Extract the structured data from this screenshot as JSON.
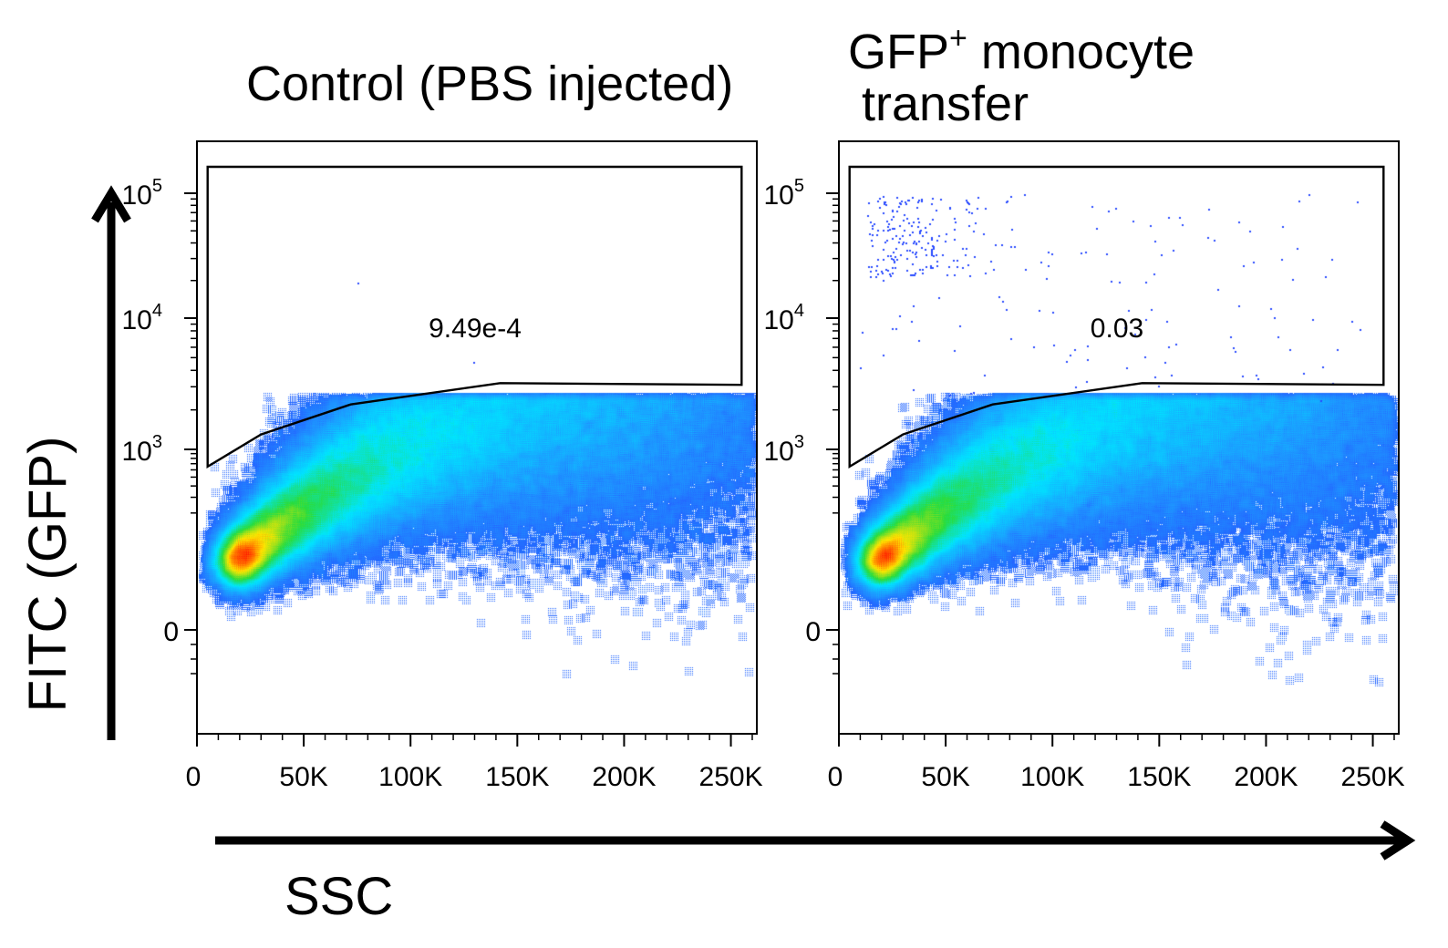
{
  "figure": {
    "ylabel": "FITC (GFP)",
    "xlabel": "SSC"
  },
  "chart_data": [
    {
      "type": "scatter",
      "title": "Control (PBS injected)",
      "xlabel": "SSC",
      "ylabel": "FITC (GFP)",
      "x_scale": "linear",
      "y_scale": "biexponential",
      "xlim": [
        0,
        262144
      ],
      "x_ticks": [
        "0",
        "50K",
        "100K",
        "150K",
        "200K",
        "250K"
      ],
      "x_tick_values": [
        0,
        50000,
        100000,
        150000,
        200000,
        250000
      ],
      "y_ticks": [
        "0",
        "10^3",
        "10^4",
        "10^5"
      ],
      "y_tick_values": [
        0,
        1000,
        10000,
        100000
      ],
      "gate": {
        "label": "9.49e-4",
        "polygon": [
          [
            5000,
            650
          ],
          [
            30000,
            1300
          ],
          [
            72000,
            2200
          ],
          [
            142000,
            3200
          ],
          [
            255000,
            3100
          ],
          [
            255000,
            160000
          ],
          [
            5000,
            160000
          ]
        ]
      },
      "density_core": {
        "x": 18000,
        "y": 50
      },
      "rare_events_in_gate": 2
    },
    {
      "type": "scatter",
      "title": "GFP+ monocyte transfer",
      "title_lines": [
        "GFP",
        "+",
        " monocyte",
        "transfer"
      ],
      "xlabel": "SSC",
      "ylabel": "FITC (GFP)",
      "x_scale": "linear",
      "y_scale": "biexponential",
      "xlim": [
        0,
        262144
      ],
      "x_ticks": [
        "0",
        "50K",
        "100K",
        "150K",
        "200K",
        "250K"
      ],
      "x_tick_values": [
        0,
        50000,
        100000,
        150000,
        200000,
        250000
      ],
      "y_ticks": [
        "0",
        "10^3",
        "10^4",
        "10^5"
      ],
      "y_tick_values": [
        0,
        1000,
        10000,
        100000
      ],
      "gate": {
        "label": "0.03",
        "polygon": [
          [
            5000,
            650
          ],
          [
            30000,
            1300
          ],
          [
            72000,
            2200
          ],
          [
            142000,
            3200
          ],
          [
            255000,
            3100
          ],
          [
            255000,
            160000
          ],
          [
            5000,
            160000
          ]
        ]
      },
      "density_core": {
        "x": 18000,
        "y": 50
      },
      "rare_events_in_gate": 320
    }
  ],
  "colors": {
    "density_low": "#1a3cff",
    "density_mid": "#00e5ff",
    "density_high": "#1fd400",
    "density_peak": "#ff1a00",
    "frame": "#000000"
  }
}
